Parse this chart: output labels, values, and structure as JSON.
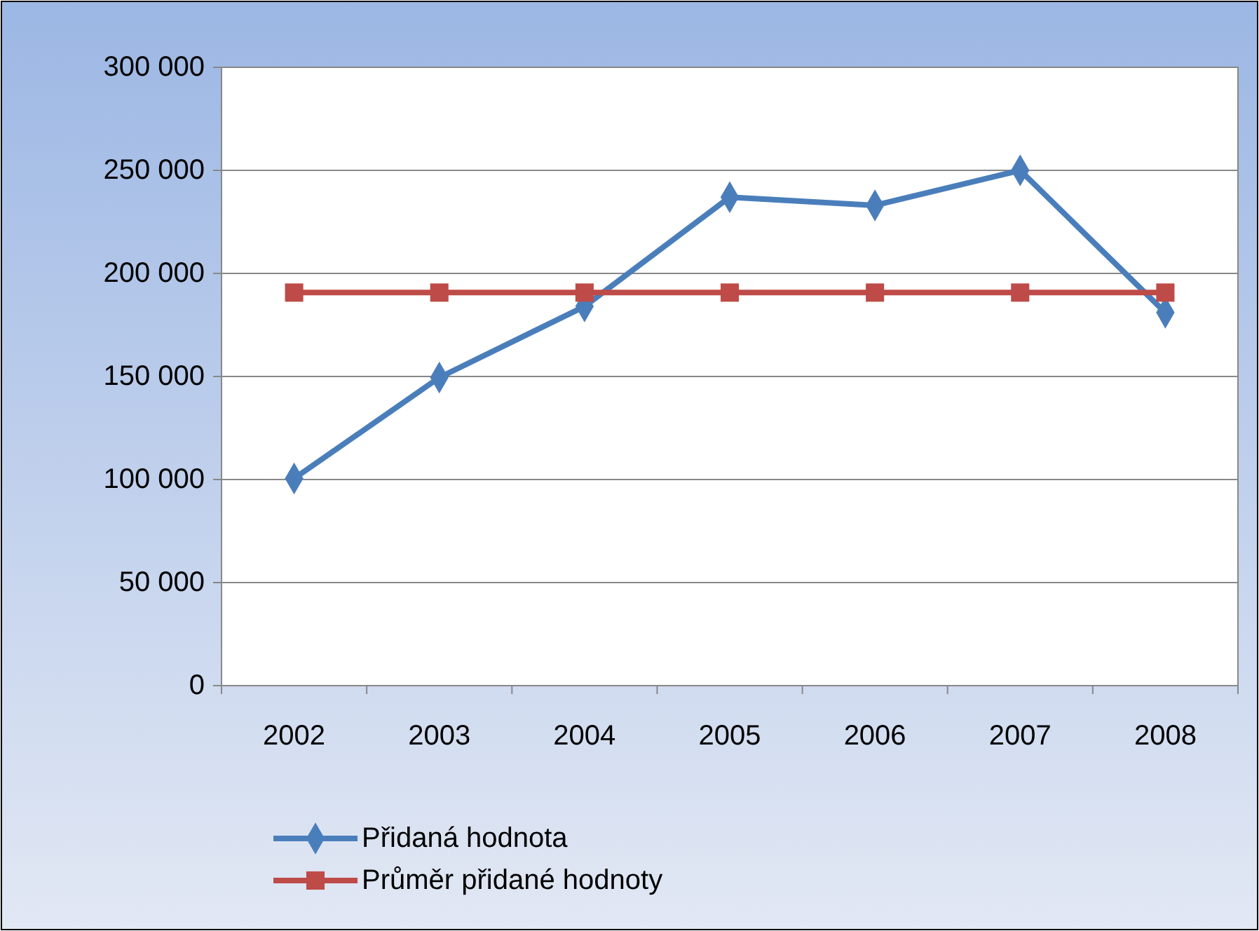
{
  "chart_data": {
    "type": "line",
    "categories": [
      "2002",
      "2003",
      "2004",
      "2005",
      "2006",
      "2007",
      "2008"
    ],
    "series": [
      {
        "name": "Přidaná hodnota",
        "color": "#4a7ebb",
        "marker": "diamond",
        "values": [
          100500,
          149500,
          184000,
          237000,
          233000,
          250000,
          181000
        ]
      },
      {
        "name": "Průměr přidané hodnoty",
        "color": "#be4b48",
        "marker": "square",
        "values": [
          190700,
          190700,
          190700,
          190700,
          190700,
          190700,
          190700
        ]
      }
    ],
    "ylim": [
      0,
      300000
    ],
    "yticks": [
      0,
      {
        "value": 50000,
        "label": "50 000"
      },
      {
        "value": 100000,
        "label": "100 000"
      },
      {
        "value": 150000,
        "label": "150 000"
      },
      {
        "value": 200000,
        "label": "200 000"
      },
      {
        "value": 250000,
        "label": "250 000"
      },
      {
        "value": 300000,
        "label": "300 000"
      }
    ],
    "grid": "y",
    "legend": "bottom left",
    "line_style": "solid"
  }
}
